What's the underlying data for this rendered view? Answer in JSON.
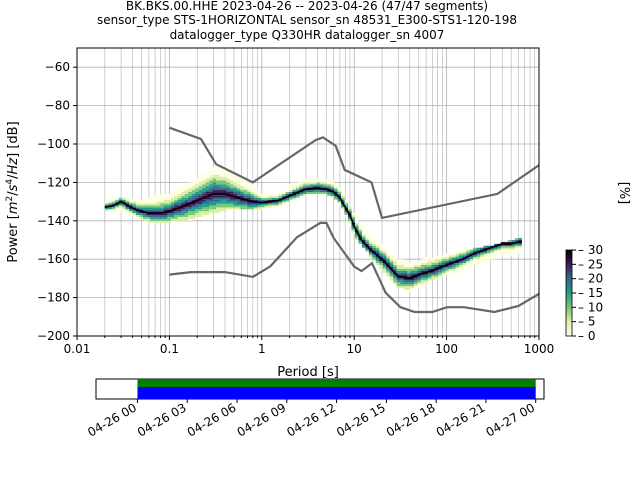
{
  "title_lines": [
    "BK.BKS.00.HHE   2023-04-26 -- 2023-04-26  (47/47 segments)",
    "sensor_type STS-1HORIZONTAL sensor_sn 48531_E300-STS1-120-198",
    "datalogger_type Q330HR datalogger_sn 4007"
  ],
  "chart_data": [
    {
      "type": "heatmap",
      "xlabel": "Period [s]",
      "ylabel": "Power [m²/s⁴/Hz] [dB]",
      "xscale": "log",
      "xlim": [
        0.01,
        1000
      ],
      "ylim": [
        -200,
        -50
      ],
      "x_tick_labels": [
        "0.01",
        "0.1",
        "1",
        "10",
        "100",
        "1000"
      ],
      "y_tick_labels": [
        "−60",
        "−80",
        "−100",
        "−120",
        "−140",
        "−160",
        "−180",
        "−200"
      ],
      "grid": true,
      "colorbar": {
        "label": "[%]",
        "range": [
          0,
          30
        ],
        "tick_labels": [
          "0",
          "5",
          "10",
          "15",
          "20",
          "25",
          "30"
        ],
        "colors": [
          "#ffffe5",
          "#d9f0a3",
          "#78c679",
          "#1f9e89",
          "#31688e",
          "#3e1a58",
          "#000004"
        ]
      },
      "noise_model_high": {
        "period": [
          0.1,
          0.22,
          0.32,
          0.8,
          3.8,
          4.6,
          6.3,
          7.9,
          15.4,
          20,
          354.8,
          1000
        ],
        "power": [
          -91.5,
          -97.4,
          -110.5,
          -120,
          -98,
          -96.5,
          -101,
          -113.5,
          -120,
          -138.5,
          -126,
          -111
        ]
      },
      "noise_model_low": {
        "period": [
          0.1,
          0.17,
          0.4,
          0.8,
          1.24,
          2.4,
          4.3,
          5,
          6,
          10,
          12,
          15.6,
          21.9,
          31.6,
          45,
          70,
          101,
          154,
          328,
          600,
          1000
        ],
        "power": [
          -168,
          -166.7,
          -166.7,
          -169.2,
          -163.7,
          -148.6,
          -141.1,
          -141.1,
          -149,
          -163.8,
          -166.2,
          -162.1,
          -177.5,
          -185,
          -187.5,
          -187.5,
          -185,
          -185,
          -187.5,
          -184.4,
          -178
        ]
      },
      "mean_curve": {
        "period": [
          0.02,
          0.025,
          0.03,
          0.035,
          0.045,
          0.06,
          0.08,
          0.1,
          0.15,
          0.2,
          0.3,
          0.4,
          0.6,
          0.8,
          1,
          1.5,
          2,
          3,
          4,
          5,
          6,
          7,
          8,
          9,
          10,
          12,
          15,
          20,
          25,
          30,
          40,
          50,
          70,
          100,
          150,
          200,
          300,
          400,
          500,
          600,
          650
        ],
        "power": [
          -133,
          -132,
          -130,
          -132,
          -134.5,
          -136,
          -136,
          -135,
          -132,
          -129.5,
          -126,
          -126,
          -128.5,
          -130,
          -130.5,
          -129.5,
          -127,
          -123.5,
          -123,
          -123.5,
          -125,
          -128,
          -133,
          -137,
          -143,
          -150,
          -155,
          -160,
          -165,
          -169,
          -170,
          -168,
          -166,
          -163,
          -160,
          -157,
          -154,
          -152,
          -152,
          -151,
          -151
        ]
      },
      "density_band": {
        "period": [
          0.02,
          0.03,
          0.05,
          0.08,
          0.1,
          0.15,
          0.2,
          0.3,
          0.5,
          0.8,
          1,
          1.5,
          2,
          3,
          4,
          5,
          6,
          8,
          10,
          15,
          20,
          30,
          40,
          60,
          100,
          200,
          400,
          650
        ],
        "low": [
          -135,
          -134,
          -139,
          -141,
          -140,
          -140,
          -138,
          -136,
          -133,
          -134,
          -133.5,
          -132,
          -129,
          -126,
          -126,
          -126,
          -128,
          -136,
          -148,
          -158,
          -165,
          -174,
          -177,
          -172,
          -168,
          -163,
          -158,
          -156
        ],
        "high": [
          -131,
          -128,
          -130,
          -127,
          -126,
          -122,
          -118,
          -112,
          -115,
          -122,
          -127,
          -126,
          -122,
          -118,
          -118,
          -118,
          -120,
          -128,
          -138,
          -148,
          -153,
          -160,
          -163,
          -160,
          -158,
          -155,
          -152,
          -149
        ]
      }
    },
    {
      "type": "bar",
      "title": "",
      "x_tick_labels": [
        "04-26 00",
        "04-26 03",
        "04-26 06",
        "04-26 09",
        "04-26 12",
        "04-26 15",
        "04-26 18",
        "04-26 21",
        "04-27 00"
      ],
      "xlim": [
        "2023-04-25 21:30",
        "2023-04-27 00:30"
      ],
      "series": [
        {
          "name": "",
          "color": "#008000",
          "start": "2023-04-26 00:00",
          "end": "2023-04-27 00:00"
        },
        {
          "name": "",
          "color": "#0000ff",
          "start": "2023-04-26 00:00",
          "end": "2023-04-27 00:00"
        }
      ]
    }
  ]
}
